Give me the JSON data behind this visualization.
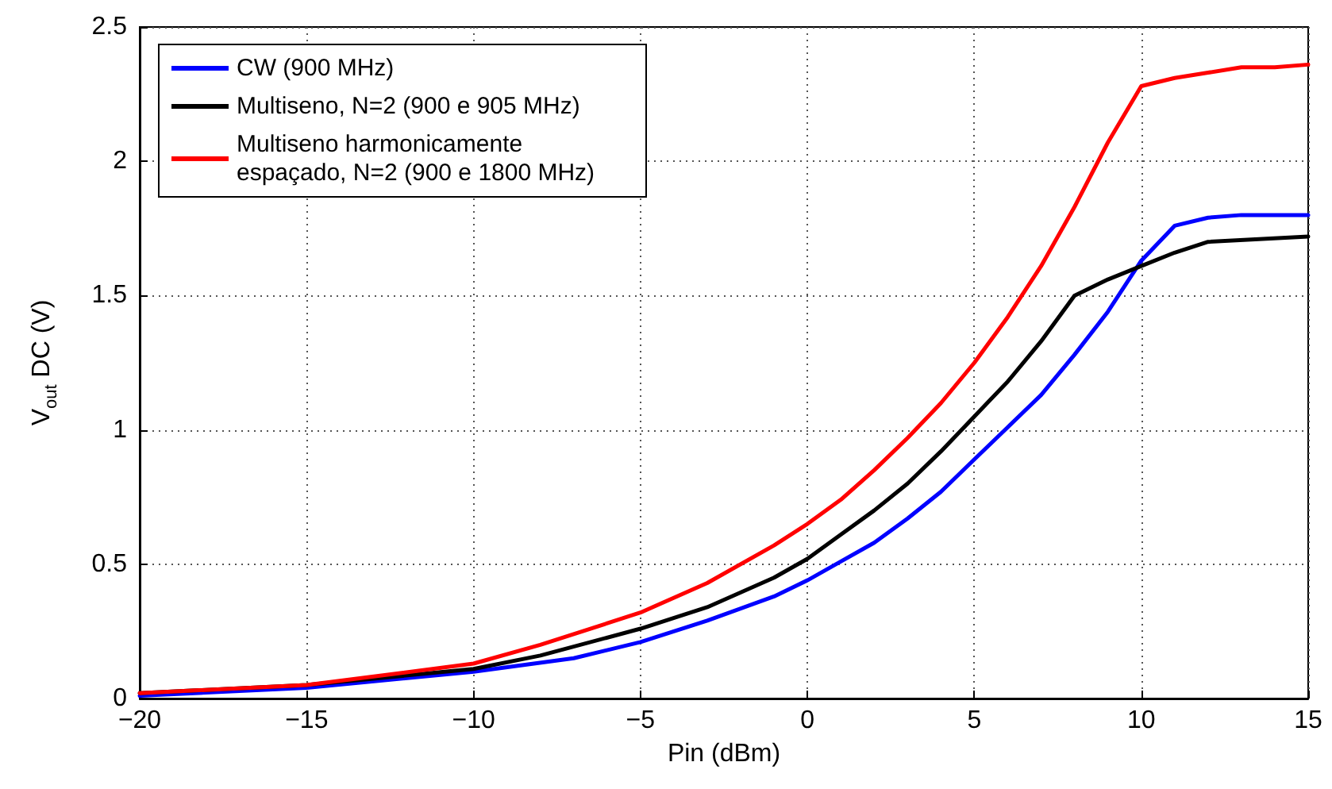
{
  "chart_data": {
    "type": "line",
    "xlabel": "Pin (dBm)",
    "ylabel": "V$_{out}$ DC (V)",
    "xlim": [
      -20,
      15
    ],
    "xticks": [
      -20,
      -15,
      -10,
      -5,
      0,
      5,
      10,
      15
    ],
    "ylim": [
      0,
      2.5
    ],
    "yticks": [
      0,
      0.5,
      1,
      1.5,
      2,
      2.5
    ],
    "grid": true,
    "legend": "top left",
    "marker": "none",
    "line_style": "solid",
    "series": [
      {
        "name": "CW (900 MHz)",
        "color": "#0000ff",
        "x": [
          -20,
          -15,
          -10,
          -7,
          -5,
          -3,
          -1,
          0,
          1,
          2,
          3,
          4,
          5,
          6,
          7,
          8,
          9,
          10,
          11,
          12,
          13,
          15
        ],
        "values": [
          0.01,
          0.04,
          0.1,
          0.15,
          0.21,
          0.29,
          0.38,
          0.44,
          0.51,
          0.58,
          0.67,
          0.77,
          0.89,
          1.01,
          1.13,
          1.28,
          1.44,
          1.63,
          1.76,
          1.79,
          1.8,
          1.8
        ]
      },
      {
        "name": "Multiseno, N=2 (900 e 905 MHz)",
        "color": "#000000",
        "x": [
          -20,
          -15,
          -10,
          -8,
          -5,
          -3,
          -1,
          0,
          1,
          2,
          3,
          4,
          5,
          6,
          7,
          8,
          9,
          10,
          11,
          12,
          15
        ],
        "values": [
          0.02,
          0.05,
          0.11,
          0.16,
          0.26,
          0.34,
          0.45,
          0.52,
          0.61,
          0.7,
          0.8,
          0.92,
          1.05,
          1.18,
          1.33,
          1.5,
          1.56,
          1.61,
          1.66,
          1.7,
          1.72
        ]
      },
      {
        "name": "Multiseno harmonicamente espaçado, N=2 (900 e 1800 MHz)",
        "color": "#ff0000",
        "x": [
          -20,
          -15,
          -10,
          -8,
          -5,
          -3,
          -1,
          0,
          1,
          2,
          3,
          4,
          5,
          6,
          7,
          8,
          9,
          10,
          11,
          12,
          13,
          14,
          15
        ],
        "values": [
          0.02,
          0.05,
          0.13,
          0.2,
          0.32,
          0.43,
          0.57,
          0.65,
          0.74,
          0.85,
          0.97,
          1.1,
          1.25,
          1.42,
          1.61,
          1.83,
          2.07,
          2.28,
          2.31,
          2.33,
          2.35,
          2.35,
          2.36
        ]
      }
    ]
  }
}
